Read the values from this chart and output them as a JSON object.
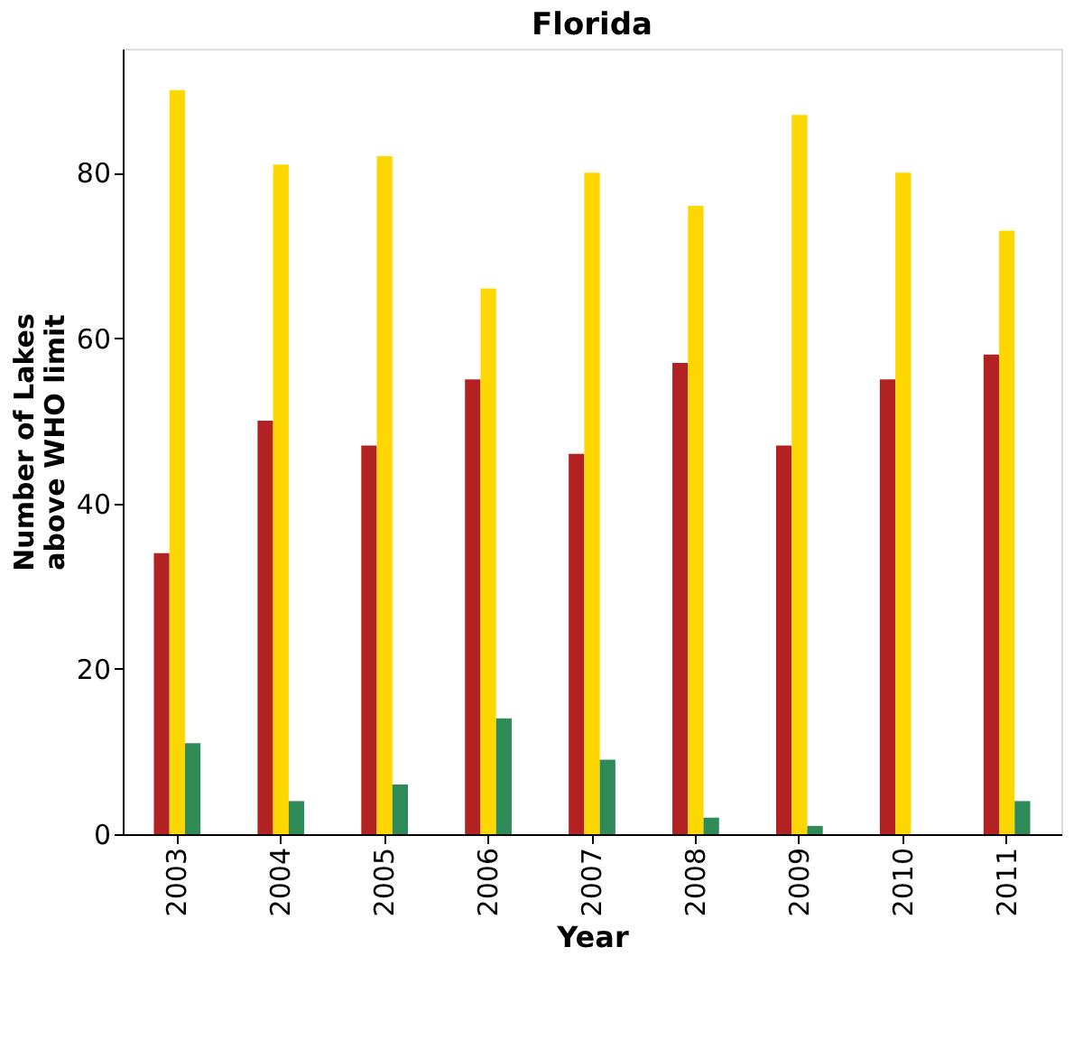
{
  "chart_data": {
    "type": "bar",
    "title": "Florida",
    "xlabel": "Year",
    "ylabel": "Number of Lakes\nabove WHO limit",
    "categories": [
      "2003",
      "2004",
      "2005",
      "2006",
      "2007",
      "2008",
      "2009",
      "2010",
      "2011"
    ],
    "series": [
      {
        "color": "#b22222",
        "values": [
          34,
          50,
          47,
          55,
          46,
          57,
          47,
          55,
          58
        ]
      },
      {
        "color": "#ffd700",
        "values": [
          90,
          81,
          82,
          66,
          80,
          76,
          87,
          80,
          73
        ]
      },
      {
        "color": "#2e8b57",
        "values": [
          11,
          4,
          6,
          14,
          9,
          2,
          1,
          0,
          4
        ]
      }
    ],
    "ylim": [
      0,
      95
    ],
    "yticks": [
      0,
      20,
      40,
      60,
      80
    ],
    "grid": false
  }
}
